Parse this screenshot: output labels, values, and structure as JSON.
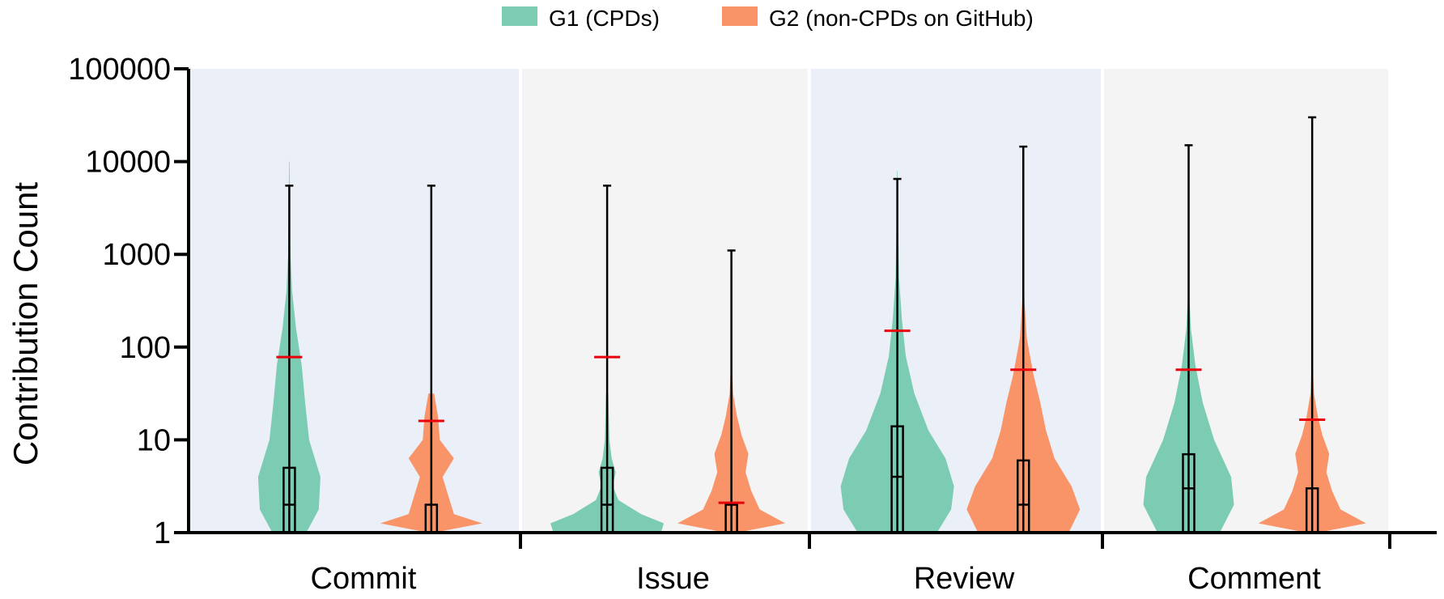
{
  "chart_data": {
    "type": "violin",
    "ylabel": "Contribution Count",
    "yscale": "log",
    "ylim": [
      1,
      100000
    ],
    "yticks": [
      "1",
      "10",
      "100",
      "1000",
      "10000",
      "100000"
    ],
    "categories": [
      "Commit",
      "Issue",
      "Review",
      "Comment"
    ],
    "legend": {
      "placement": "top-center"
    },
    "series": [
      {
        "name": "G1 (CPDs)",
        "color": "#7ccbb3",
        "stats": [
          {
            "min": 1,
            "q1": 1,
            "median": 2,
            "q3": 5,
            "max": 5500,
            "mean_marker": 78
          },
          {
            "min": 1,
            "q1": 1,
            "median": 2,
            "q3": 5,
            "max": 5500,
            "mean_marker": 78
          },
          {
            "min": 1,
            "q1": 1,
            "median": 4,
            "q3": 14,
            "max": 6500,
            "mean_marker": 150
          },
          {
            "min": 1,
            "q1": 1,
            "median": 3,
            "q3": 7,
            "max": 15000,
            "mean_marker": 57
          }
        ]
      },
      {
        "name": "G2 (non-CPDs on GitHub)",
        "color": "#f99469",
        "stats": [
          {
            "min": 1,
            "q1": 1,
            "median": 1,
            "q3": 2,
            "max": 5500,
            "mean_marker": 16
          },
          {
            "min": 1,
            "q1": 1,
            "median": 1,
            "q3": 2,
            "max": 1100,
            "mean_marker": 2.1
          },
          {
            "min": 1,
            "q1": 1,
            "median": 2,
            "q3": 6,
            "max": 14500,
            "mean_marker": 57
          },
          {
            "min": 1,
            "q1": 1,
            "median": 1,
            "q3": 3,
            "max": 30000,
            "mean_marker": 16.5
          }
        ]
      }
    ],
    "panel_colors": [
      "#eaeff8",
      "#f4f4f4",
      "#eaeff8",
      "#f4f4f4"
    ],
    "mean_marker_color": "#e8000b"
  }
}
